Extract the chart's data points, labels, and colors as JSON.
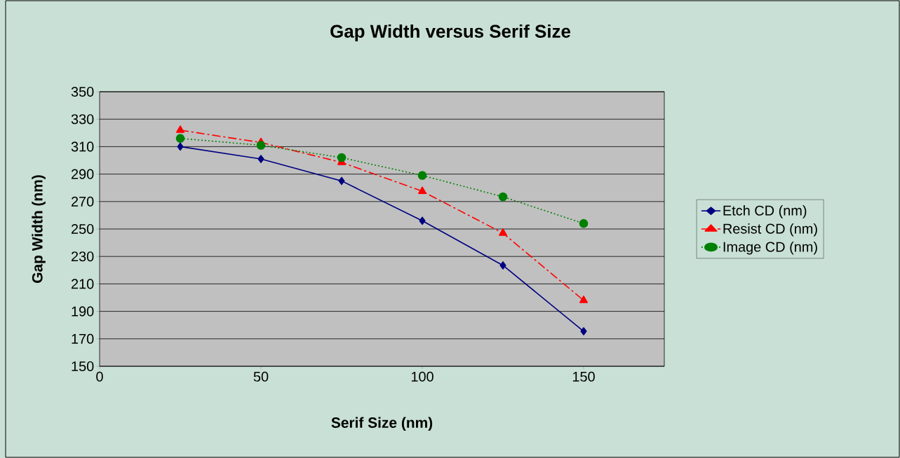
{
  "chart_data": {
    "type": "line",
    "title": "Gap Width versus Serif Size",
    "xlabel": "Serif Size (nm)",
    "ylabel": "Gap Width (nm)",
    "x": [
      25,
      50,
      75,
      100,
      125,
      150
    ],
    "series": [
      {
        "name": "Etch CD (nm)",
        "color": "#000080",
        "marker": "diamond",
        "line_style": "solid",
        "values": [
          310,
          301,
          285,
          256,
          223.5,
          175.5
        ]
      },
      {
        "name": "Resist CD (nm)",
        "color": "#ff0000",
        "marker": "triangle",
        "line_style": "dashed",
        "values": [
          322,
          313,
          298.5,
          277.5,
          247,
          198
        ]
      },
      {
        "name": "Image CD (nm)",
        "color": "#008000",
        "marker": "circle",
        "line_style": "dotted",
        "values": [
          316,
          311,
          302,
          289,
          273.5,
          254
        ]
      }
    ],
    "xlim": [
      0,
      175
    ],
    "xticks": [
      0,
      50,
      100,
      150
    ],
    "ylim": [
      150,
      350
    ],
    "yticks": [
      150,
      170,
      190,
      210,
      230,
      250,
      270,
      290,
      310,
      330,
      350
    ],
    "grid": "y",
    "legend": "right"
  }
}
